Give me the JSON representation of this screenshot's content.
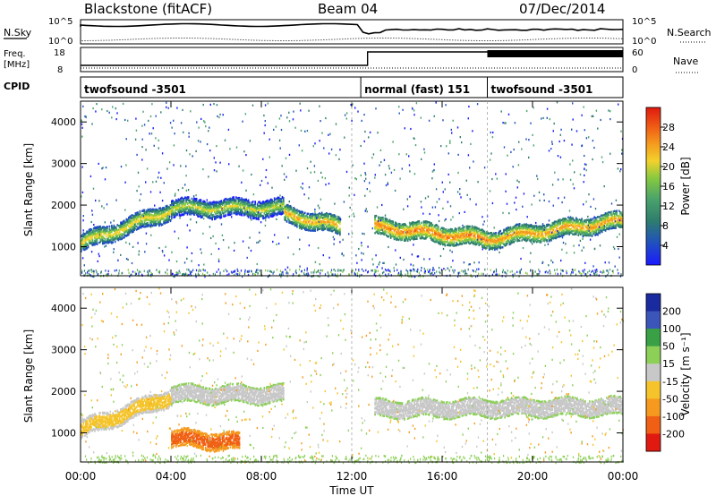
{
  "header": {
    "station": "Blackstone (fitACF)",
    "beam": "Beam 04",
    "date": "07/Dec/2014"
  },
  "summary_panel": {
    "nsky_label": "N.Sky",
    "nsky_ticks": [
      "10^5",
      "10^0"
    ],
    "nsearch_label": "N.Search",
    "nsearch_ticks": [
      "10^5",
      "10^0"
    ],
    "freq_label": "Freq.",
    "freq_unit": "[MHz]",
    "freq_ticks": [
      "18",
      "8"
    ],
    "nave_label": "Nave",
    "nave_ticks": [
      "60",
      "0"
    ],
    "cpid_label": "CPID",
    "cpid_segments": [
      {
        "label": "twofsound -3501",
        "start_hour": 0,
        "end_hour": 12.4
      },
      {
        "label": "normal (fast) 151",
        "start_hour": 12.4,
        "end_hour": 18.0
      },
      {
        "label": "twofsound -3501",
        "start_hour": 18.0,
        "end_hour": 24.0
      }
    ]
  },
  "chart_data": [
    {
      "type": "heatmap",
      "quantity": "Power",
      "ylabel": "Slant Range [km]",
      "xlim_hours": [
        0,
        24
      ],
      "ylim_km": [
        300,
        4500
      ],
      "yticks": [
        "1000",
        "2000",
        "3000",
        "4000"
      ],
      "colorbar": {
        "label": "Power [dB]",
        "ticks": [
          "4",
          "8",
          "12",
          "16",
          "20",
          "24",
          "28"
        ],
        "range": [
          0,
          32
        ],
        "colors": [
          "#1a1aff",
          "#2050c0",
          "#2e7d6e",
          "#4aa36a",
          "#86c940",
          "#f2d12c",
          "#f59a1e",
          "#ef5a14",
          "#e01a10"
        ]
      },
      "bands": [
        {
          "hours": [
            0,
            4
          ],
          "km_center": [
            1100,
            1900
          ],
          "power": 22
        },
        {
          "hours": [
            4,
            9
          ],
          "km_center": [
            1950,
            1950
          ],
          "power": 20
        },
        {
          "hours": [
            9,
            11.5
          ],
          "km_center": [
            1800,
            1500
          ],
          "power": 24
        },
        {
          "hours": [
            13,
            18
          ],
          "km_center": [
            1500,
            1200
          ],
          "power": 27
        },
        {
          "hours": [
            18,
            24
          ],
          "km_center": [
            1200,
            1650
          ],
          "power": 25
        }
      ]
    },
    {
      "type": "heatmap",
      "quantity": "Velocity",
      "ylabel": "Slant Range [km]",
      "xlabel": "Time UT",
      "xticks": [
        "00:00",
        "04:00",
        "08:00",
        "12:00",
        "16:00",
        "20:00",
        "00:00"
      ],
      "xlim_hours": [
        0,
        24
      ],
      "ylim_km": [
        300,
        4500
      ],
      "yticks": [
        "1000",
        "2000",
        "3000",
        "4000"
      ],
      "colorbar": {
        "label": "Velocity [m s⁻¹]",
        "ticks": [
          "200",
          "100",
          "50",
          "15",
          "-15",
          "-50",
          "-100",
          "-200"
        ],
        "colors": [
          "#1a2a9f",
          "#3c55b8",
          "#39a046",
          "#8cd057",
          "#c8c8c8",
          "#f5c42c",
          "#f59a1e",
          "#f06014",
          "#e01a10"
        ]
      },
      "bands": [
        {
          "hours": [
            0,
            4
          ],
          "km_center": [
            1100,
            1900
          ],
          "velocity": -50
        },
        {
          "hours": [
            4,
            9
          ],
          "km_center": [
            1950,
            1950
          ],
          "velocity": 0
        },
        {
          "hours": [
            4,
            7
          ],
          "km_center": [
            900,
            800
          ],
          "velocity": -100
        },
        {
          "hours": [
            13,
            24
          ],
          "km_center": [
            1600,
            1650
          ],
          "velocity": 0
        }
      ]
    }
  ]
}
